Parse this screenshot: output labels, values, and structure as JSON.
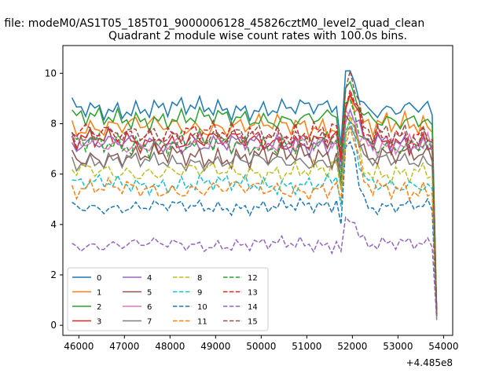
{
  "chart_data": {
    "type": "line",
    "suptitle": "n file: modeM0/AS1T05_185T01_9000006128_45826cztM0_level2_quad_clean",
    "title": "Quadrant 2 module wise count rates with 100.0s bins.",
    "xlabel": "",
    "ylabel": "",
    "x_offset_label": "+4.485e8",
    "xlim": [
      45650,
      54200
    ],
    "ylim": [
      -0.4,
      11.1
    ],
    "xticks": [
      "46000",
      "47000",
      "48000",
      "49000",
      "50000",
      "51000",
      "52000",
      "53000",
      "54000"
    ],
    "yticks": [
      "0",
      "2",
      "4",
      "6",
      "8",
      "10"
    ],
    "grid": false,
    "legend_position": "lower-left",
    "legend_columns": 4,
    "x": {
      "start": 45850,
      "step": 100,
      "count": 81
    },
    "series": [
      {
        "name": "0",
        "color": "#1f77b4",
        "dash": "solid",
        "base": 8.6,
        "noise": 0.35,
        "peak": 1.6,
        "dip": 2.0,
        "s1": 1.1,
        "s2": 2.3
      },
      {
        "name": "1",
        "color": "#ff7f0e",
        "dash": "solid",
        "base": 7.9,
        "noise": 0.4,
        "peak": 1.3,
        "dip": 1.8,
        "s1": 2.1,
        "s2": 0.7
      },
      {
        "name": "2",
        "color": "#2ca02c",
        "dash": "solid",
        "base": 8.2,
        "noise": 0.35,
        "peak": 1.2,
        "dip": 2.0,
        "s1": 0.4,
        "s2": 1.9
      },
      {
        "name": "3",
        "color": "#d62728",
        "dash": "solid",
        "base": 7.3,
        "noise": 0.4,
        "peak": 1.8,
        "dip": 1.9,
        "s1": 3.3,
        "s2": 1.2
      },
      {
        "name": "4",
        "color": "#9467bd",
        "dash": "solid",
        "base": 7.2,
        "noise": 0.35,
        "peak": 1.3,
        "dip": 1.9,
        "s1": 2.7,
        "s2": 0.3
      },
      {
        "name": "5",
        "color": "#8c564b",
        "dash": "solid",
        "base": 6.7,
        "noise": 0.4,
        "peak": 1.8,
        "dip": 1.7,
        "s1": 1.7,
        "s2": 2.9
      },
      {
        "name": "6",
        "color": "#e377c2",
        "dash": "solid",
        "base": 7.2,
        "noise": 0.35,
        "peak": 1.2,
        "dip": 1.8,
        "s1": 0.9,
        "s2": 3.5
      },
      {
        "name": "7",
        "color": "#7f7f7f",
        "dash": "solid",
        "base": 6.5,
        "noise": 0.3,
        "peak": 1.5,
        "dip": 1.6,
        "s1": 2.4,
        "s2": 1.6
      },
      {
        "name": "8",
        "color": "#bcbd22",
        "dash": "dashed",
        "base": 6.1,
        "noise": 0.35,
        "peak": 2.1,
        "dip": 1.8,
        "s1": 3.8,
        "s2": 0.5
      },
      {
        "name": "9",
        "color": "#17becf",
        "dash": "dashed",
        "base": 5.6,
        "noise": 0.3,
        "peak": 2.3,
        "dip": 1.6,
        "s1": 0.2,
        "s2": 2.6
      },
      {
        "name": "10",
        "color": "#1f77b4",
        "dash": "dashed",
        "base": 4.7,
        "noise": 0.25,
        "peak": 2.8,
        "dip": 1.6,
        "s1": 1.4,
        "s2": 3.1
      },
      {
        "name": "11",
        "color": "#ff7f0e",
        "dash": "dashed",
        "base": 5.4,
        "noise": 0.35,
        "peak": 2.4,
        "dip": 1.7,
        "s1": 2.9,
        "s2": 1.0
      },
      {
        "name": "12",
        "color": "#2ca02c",
        "dash": "dashed",
        "base": 7.2,
        "noise": 0.4,
        "peak": 1.6,
        "dip": 2.0,
        "s1": 0.6,
        "s2": 2.2
      },
      {
        "name": "13",
        "color": "#d62728",
        "dash": "dashed",
        "base": 7.6,
        "noise": 0.4,
        "peak": 1.6,
        "dip": 2.0,
        "s1": 3.6,
        "s2": 0.1
      },
      {
        "name": "14",
        "color": "#9467bd",
        "dash": "dashed",
        "base": 3.2,
        "noise": 0.25,
        "peak": 1.2,
        "dip": 0.6,
        "s1": 1.9,
        "s2": 3.4
      },
      {
        "name": "15",
        "color": "#8c564b",
        "dash": "dashed",
        "base": 7.5,
        "noise": 0.4,
        "peak": 2.6,
        "dip": 1.9,
        "s1": 2.5,
        "s2": 0.8
      }
    ]
  }
}
